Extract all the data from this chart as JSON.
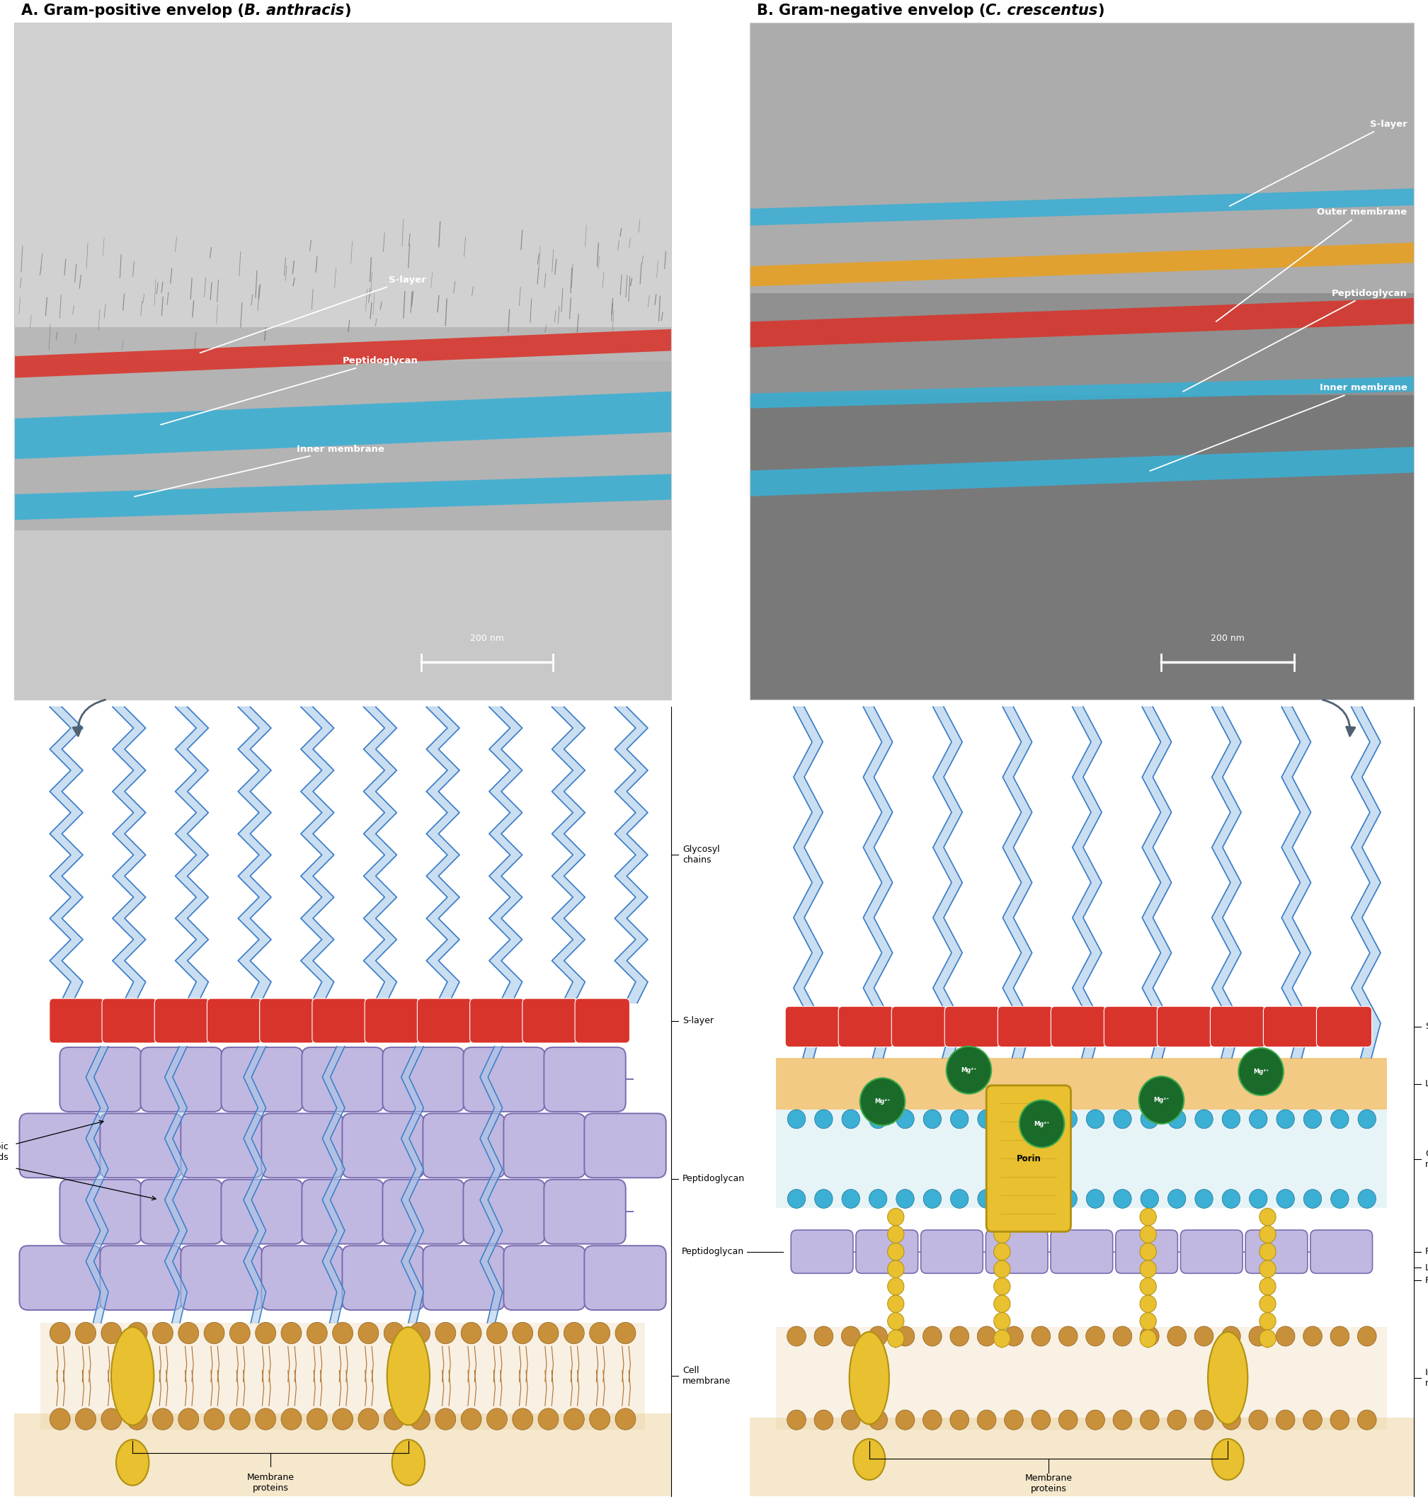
{
  "title_A_plain": "A. Gram-positive envelop (",
  "title_A_italic": "B. anthracis",
  "title_A_close": ")",
  "title_B_plain": "B. Gram-negative envelop (",
  "title_B_italic": "C. crescentus",
  "title_B_close": ")",
  "colors": {
    "s_layer_red": "#d9342b",
    "membrane_blue": "#3bafd4",
    "lps_gold": "#e8a020",
    "peptido_purple": "#7b6bb0",
    "peptido_light": "#c0b8e0",
    "chain_blue": "#3a7cc8",
    "chain_light": "#a8c8e8",
    "cell_mem_tan": "#c8903a",
    "cell_mem_light": "#e8d0a0",
    "protein_yellow": "#e8c030",
    "mg_green_dark": "#1a6a2a",
    "mg_green_light": "#3aaa4a",
    "lipo_yellow": "#e8c030",
    "arrow_gray": "#506070",
    "bg": "#ffffff"
  }
}
